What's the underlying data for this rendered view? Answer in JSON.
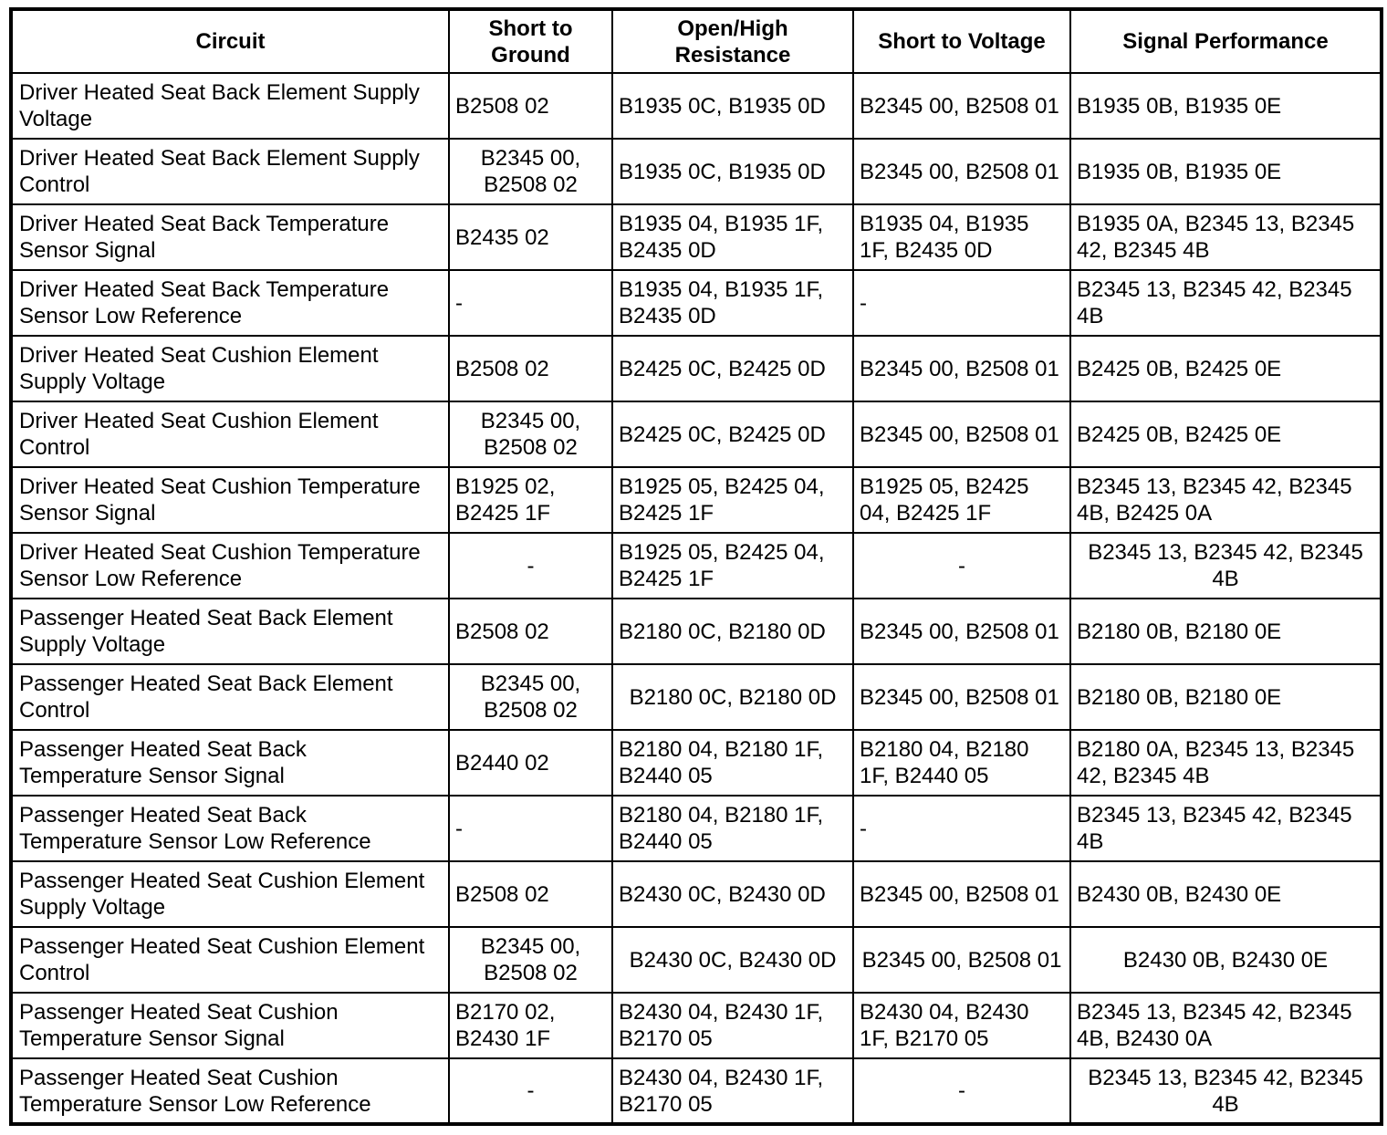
{
  "page": {
    "background_color": "#ffffff",
    "text_color": "#000000",
    "border_color": "#000000"
  },
  "table": {
    "columns": [
      {
        "id": "circuit",
        "label": "Circuit"
      },
      {
        "id": "short-to-ground",
        "label": "Short to\nGround"
      },
      {
        "id": "open-high-resistance",
        "label": "Open/High\nResistance"
      },
      {
        "id": "short-to-voltage",
        "label": "Short to Voltage"
      },
      {
        "id": "signal-performance",
        "label": "Signal Performance"
      }
    ],
    "rows": [
      {
        "cells": [
          {
            "text": "Driver Heated Seat Back Element Supply\nVoltage",
            "align": "left"
          },
          {
            "text": "B2508 02",
            "align": "left"
          },
          {
            "text": "B1935 0C, B1935 0D",
            "align": "left"
          },
          {
            "text": "B2345 00, B2508 01",
            "align": "left"
          },
          {
            "text": "B1935 0B, B1935 0E",
            "align": "left"
          }
        ]
      },
      {
        "cells": [
          {
            "text": "Driver Heated Seat Back Element Supply\nControl",
            "align": "left"
          },
          {
            "text": "B2345 00,\nB2508 02",
            "align": "center"
          },
          {
            "text": "B1935 0C, B1935 0D",
            "align": "left"
          },
          {
            "text": "B2345 00, B2508 01",
            "align": "left"
          },
          {
            "text": "B1935 0B, B1935 0E",
            "align": "left"
          }
        ]
      },
      {
        "cells": [
          {
            "text": "Driver Heated Seat Back Temperature\nSensor Signal",
            "align": "left"
          },
          {
            "text": "B2435 02",
            "align": "left"
          },
          {
            "text": "B1935 04, B1935 1F,\nB2435 0D",
            "align": "left"
          },
          {
            "text": "B1935 04, B1935\n1F, B2435 0D",
            "align": "left"
          },
          {
            "text": "B1935 0A, B2345 13, B2345\n42, B2345 4B",
            "align": "left"
          }
        ]
      },
      {
        "cells": [
          {
            "text": "Driver Heated Seat Back Temperature\nSensor Low Reference",
            "align": "left"
          },
          {
            "text": "-",
            "align": "left"
          },
          {
            "text": "B1935 04, B1935 1F,\nB2435 0D",
            "align": "left"
          },
          {
            "text": "-",
            "align": "left"
          },
          {
            "text": "B2345 13, B2345 42, B2345\n4B",
            "align": "left"
          }
        ]
      },
      {
        "cells": [
          {
            "text": "Driver Heated Seat Cushion Element\nSupply Voltage",
            "align": "left"
          },
          {
            "text": "B2508 02",
            "align": "left"
          },
          {
            "text": "B2425 0C, B2425 0D",
            "align": "left"
          },
          {
            "text": "B2345 00, B2508 01",
            "align": "left"
          },
          {
            "text": "B2425 0B, B2425 0E",
            "align": "left"
          }
        ]
      },
      {
        "cells": [
          {
            "text": "Driver Heated Seat Cushion Element\nControl",
            "align": "left"
          },
          {
            "text": "B2345 00,\nB2508 02",
            "align": "center"
          },
          {
            "text": "B2425 0C, B2425 0D",
            "align": "left"
          },
          {
            "text": "B2345 00, B2508 01",
            "align": "left"
          },
          {
            "text": "B2425 0B, B2425 0E",
            "align": "left"
          }
        ]
      },
      {
        "cells": [
          {
            "text": "Driver Heated Seat Cushion Temperature\nSensor Signal",
            "align": "left"
          },
          {
            "text": "B1925 02,\nB2425 1F",
            "align": "left"
          },
          {
            "text": "B1925 05, B2425 04,\nB2425 1F",
            "align": "left"
          },
          {
            "text": "B1925 05, B2425\n04, B2425 1F",
            "align": "left"
          },
          {
            "text": "B2345 13, B2345 42, B2345\n4B, B2425 0A",
            "align": "left"
          }
        ]
      },
      {
        "cells": [
          {
            "text": "Driver Heated Seat Cushion Temperature\nSensor Low Reference",
            "align": "left"
          },
          {
            "text": "-",
            "align": "center"
          },
          {
            "text": "B1925 05, B2425 04,\nB2425 1F",
            "align": "left"
          },
          {
            "text": "-",
            "align": "center"
          },
          {
            "text": "B2345 13, B2345 42, B2345\n4B",
            "align": "center"
          }
        ]
      },
      {
        "cells": [
          {
            "text": "Passenger Heated Seat Back Element\nSupply Voltage",
            "align": "left"
          },
          {
            "text": "B2508 02",
            "align": "left"
          },
          {
            "text": "B2180 0C, B2180 0D",
            "align": "left"
          },
          {
            "text": "B2345 00, B2508 01",
            "align": "left"
          },
          {
            "text": "B2180 0B, B2180 0E",
            "align": "left"
          }
        ]
      },
      {
        "cells": [
          {
            "text": "Passenger Heated Seat Back Element\nControl",
            "align": "left"
          },
          {
            "text": "B2345 00,\nB2508 02",
            "align": "center"
          },
          {
            "text": "B2180 0C, B2180 0D",
            "align": "center"
          },
          {
            "text": "B2345 00, B2508 01",
            "align": "left"
          },
          {
            "text": "B2180 0B, B2180 0E",
            "align": "left"
          }
        ]
      },
      {
        "cells": [
          {
            "text": "Passenger Heated Seat Back\nTemperature Sensor Signal",
            "align": "left"
          },
          {
            "text": "B2440 02",
            "align": "left"
          },
          {
            "text": "B2180 04, B2180 1F,\nB2440 05",
            "align": "left"
          },
          {
            "text": "B2180 04, B2180\n1F, B2440 05",
            "align": "left"
          },
          {
            "text": "B2180 0A, B2345 13, B2345\n42, B2345 4B",
            "align": "left"
          }
        ]
      },
      {
        "cells": [
          {
            "text": "Passenger Heated Seat Back\nTemperature Sensor Low Reference",
            "align": "left"
          },
          {
            "text": "-",
            "align": "left"
          },
          {
            "text": "B2180 04, B2180 1F,\nB2440 05",
            "align": "left"
          },
          {
            "text": "-",
            "align": "left"
          },
          {
            "text": "B2345 13, B2345 42, B2345\n4B",
            "align": "left"
          }
        ]
      },
      {
        "cells": [
          {
            "text": "Passenger Heated Seat Cushion Element\nSupply Voltage",
            "align": "left"
          },
          {
            "text": "B2508 02",
            "align": "left"
          },
          {
            "text": "B2430 0C, B2430 0D",
            "align": "left"
          },
          {
            "text": "B2345 00, B2508 01",
            "align": "left"
          },
          {
            "text": "B2430 0B, B2430 0E",
            "align": "left"
          }
        ]
      },
      {
        "cells": [
          {
            "text": "Passenger Heated Seat Cushion Element\nControl",
            "align": "left"
          },
          {
            "text": "B2345 00,\nB2508 02",
            "align": "center"
          },
          {
            "text": "B2430 0C, B2430 0D",
            "align": "center"
          },
          {
            "text": "B2345 00, B2508 01",
            "align": "center"
          },
          {
            "text": "B2430 0B, B2430 0E",
            "align": "center"
          }
        ]
      },
      {
        "cells": [
          {
            "text": "Passenger Heated Seat Cushion\nTemperature Sensor Signal",
            "align": "left"
          },
          {
            "text": "B2170 02,\nB2430 1F",
            "align": "left"
          },
          {
            "text": "B2430 04, B2430 1F,\nB2170 05",
            "align": "left"
          },
          {
            "text": "B2430 04, B2430\n1F, B2170 05",
            "align": "left"
          },
          {
            "text": "B2345 13, B2345 42, B2345\n4B, B2430 0A",
            "align": "left"
          }
        ]
      },
      {
        "cells": [
          {
            "text": "Passenger Heated Seat Cushion\nTemperature Sensor Low Reference",
            "align": "left"
          },
          {
            "text": "-",
            "align": "center"
          },
          {
            "text": "B2430 04, B2430 1F,\nB2170 05",
            "align": "left"
          },
          {
            "text": "-",
            "align": "center"
          },
          {
            "text": "B2345 13, B2345 42, B2345\n4B",
            "align": "center"
          }
        ]
      }
    ]
  }
}
